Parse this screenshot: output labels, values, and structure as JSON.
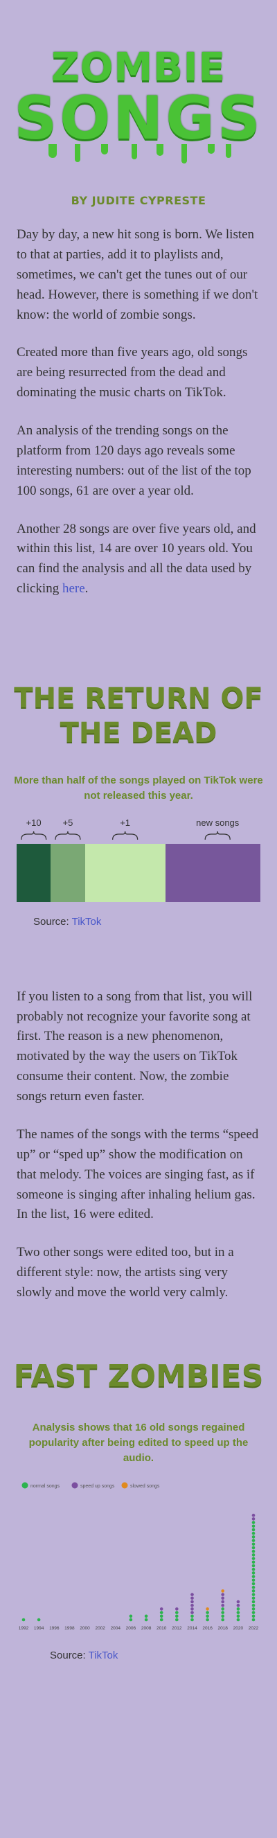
{
  "hero": {
    "title_line1": "ZOMBIE",
    "title_line2": "SONGS",
    "byline": "BY JUDITE CYPRESTE"
  },
  "intro": {
    "p1": "Day by day, a new hit song is born. We listen to that at parties, add it to playlists and, sometimes, we can't get the tunes out of our head. However, there is something if we don't know: the world of zombie songs.",
    "p2": "Created more than five years ago, old songs are being resurrected from the dead and dominating the music charts on TikTok.",
    "p3": "An analysis of the trending songs on the platform from 120 days ago reveals some interesting numbers: out of the list of the top 100 songs, 61 are over a year old.",
    "p4_before": "Another 28 songs are over five years old, and within this list, 14 are over 10 years old. You can find the analysis and all the data used by clicking ",
    "p4_link": "here",
    "p4_after": "."
  },
  "section1": {
    "title": "THE RETURN OF THE DEAD",
    "subtitle": "More than half of the songs played on TikTok were not released this year.",
    "source_label": "Source: ",
    "source_link": "TikTok",
    "colors": {
      "ten_plus": "#1e5a3c",
      "five_plus": "#7aa874",
      "one_plus": "#c4e8ac",
      "new": "#77579b"
    }
  },
  "middle": {
    "p1": "If you listen to a song from that list, you will probably not recognize your favorite song at first. The reason is a new phenomenon, motivated by the way the users on TikTok consume their content. Now, the zombie songs return even faster.",
    "p2": "The names of the songs with the terms “speed up” or “sped up” show the modification on that melody. The voices are singing fast, as if someone is singing after inhaling helium gas. In the list, 16 were edited.",
    "p3": "Two other songs were edited too, but in a different style: now, the artists sing very slowly and move the world very calmly."
  },
  "section2": {
    "title": "FAST ZOMBIES",
    "subtitle": "Analysis shows that 16 old songs regained popularity after being edited to speed up the audio.",
    "source_label": "Source: ",
    "source_link": "TikTok"
  },
  "chart_data": [
    {
      "type": "bar",
      "stacked": true,
      "orientation": "horizontal",
      "unit": "songs out of top 100",
      "series": [
        {
          "name": "+10",
          "value": 14,
          "color": "#1e5a3c"
        },
        {
          "name": "+5",
          "value": 14,
          "color": "#7aa874"
        },
        {
          "name": "+1",
          "value": 33,
          "color": "#c4e8ac"
        },
        {
          "name": "new songs",
          "value": 39,
          "color": "#77579b"
        }
      ],
      "total": 100,
      "grid": false,
      "legend": "annotations above bar"
    },
    {
      "type": "scatter",
      "style": "stacked dots",
      "legend": "top-left",
      "categories": [
        "1992",
        "1994",
        "1996",
        "1998",
        "2000",
        "2002",
        "2004",
        "2006",
        "2008",
        "2010",
        "2012",
        "2014",
        "2016",
        "2018",
        "2020",
        "2022"
      ],
      "series": [
        {
          "name": "normal songs",
          "color": "#2cb34e",
          "counts": [
            1,
            1,
            0,
            0,
            0,
            0,
            0,
            2,
            2,
            3,
            3,
            2,
            3,
            4,
            4,
            28
          ]
        },
        {
          "name": "speed up songs",
          "color": "#7b4fa0",
          "counts": [
            0,
            0,
            0,
            0,
            0,
            0,
            0,
            0,
            0,
            1,
            1,
            6,
            0,
            4,
            2,
            2
          ]
        },
        {
          "name": "slowed songs",
          "color": "#e08a1e",
          "counts": [
            0,
            0,
            0,
            0,
            0,
            0,
            0,
            0,
            0,
            0,
            0,
            0,
            1,
            1,
            0,
            0
          ]
        }
      ],
      "grid": false
    }
  ]
}
